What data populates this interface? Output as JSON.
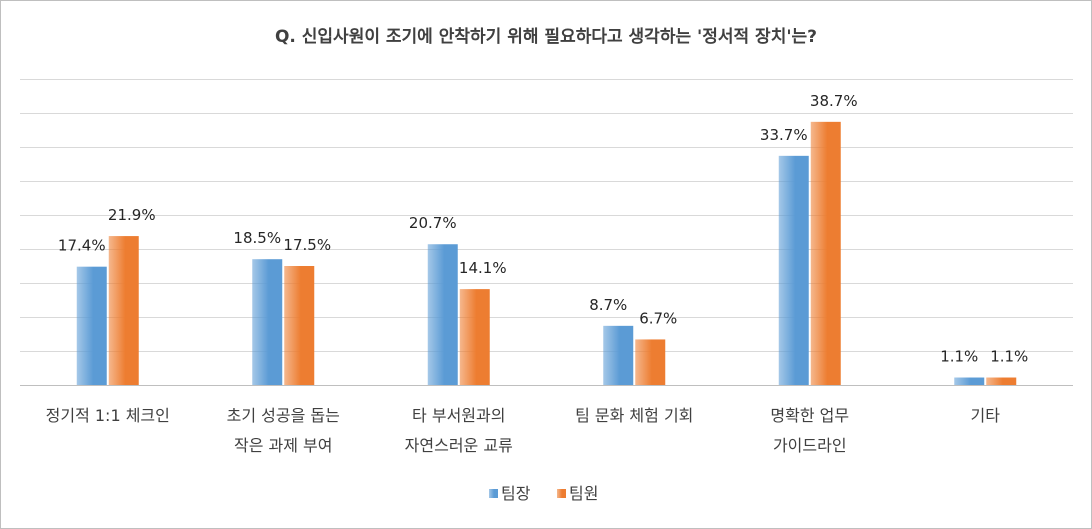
{
  "chart_data": {
    "type": "bar",
    "title": "Q. 신입사원이 조기에 안착하기 위해 필요하다고 생각하는 '정서적 장치'는?",
    "categories": [
      [
        "정기적 1:1 체크인"
      ],
      [
        "초기 성공을 돕는",
        "작은 과제 부여"
      ],
      [
        "타 부서원과의",
        "자연스러운 교류"
      ],
      [
        "팀 문화 체험 기회"
      ],
      [
        "명확한 업무",
        "가이드라인"
      ],
      [
        "기타"
      ]
    ],
    "series": [
      {
        "name": "팀장",
        "values": [
          17.4,
          18.5,
          20.7,
          8.7,
          33.7,
          1.1
        ],
        "labels": [
          "17.4%",
          "18.5%",
          "20.7%",
          "8.7%",
          "33.7%",
          "1.1%"
        ],
        "color": "#5b9bd5"
      },
      {
        "name": "팀원",
        "values": [
          21.9,
          17.5,
          14.1,
          6.7,
          38.7,
          1.1
        ],
        "labels": [
          "21.9%",
          "17.5%",
          "14.1%",
          "6.7%",
          "38.7%",
          "1.1%"
        ],
        "color": "#ed7d31"
      }
    ],
    "ylim": [
      0,
      45
    ],
    "grid": true,
    "legend": "bottom"
  }
}
